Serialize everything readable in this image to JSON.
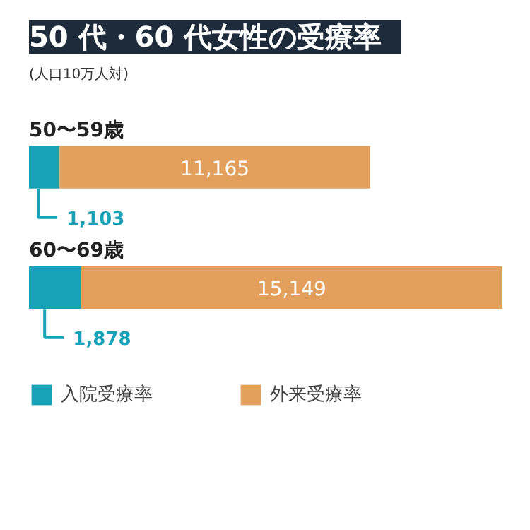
{
  "chart_data": {
    "type": "bar",
    "orientation": "horizontal",
    "stacked": true,
    "title": "50 代・60 代女性の受療率",
    "subtitle": "(人口10万人対)",
    "categories": [
      "50〜59歳",
      "60〜69歳"
    ],
    "series": [
      {
        "name": "入院受療率",
        "color": "#17a2b8",
        "values": [
          1103,
          1878
        ],
        "value_labels": [
          "1,103",
          "1,878"
        ]
      },
      {
        "name": "外来受療率",
        "color": "#e3a05c",
        "values": [
          11165,
          15149
        ],
        "value_labels": [
          "11,165",
          "15,149"
        ]
      }
    ],
    "legend": "bottom"
  }
}
